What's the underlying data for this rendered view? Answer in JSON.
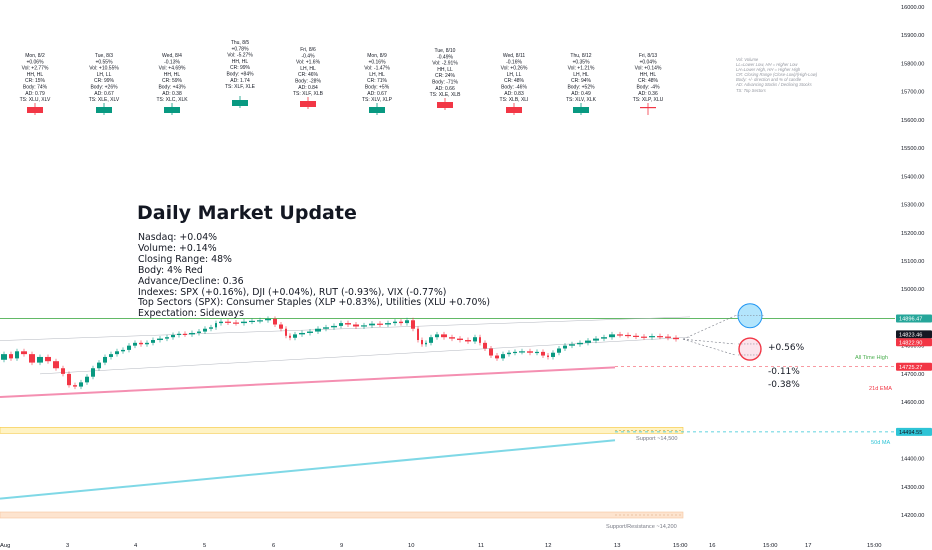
{
  "chart_data": {
    "type": "candlestick",
    "title": "Daily Market Update",
    "y_ticks": [
      14200,
      14300,
      14400,
      14500,
      14600,
      14700,
      14800,
      14900,
      15000,
      15100,
      15200,
      15300,
      15400,
      15500,
      15600,
      15700,
      15800,
      15900,
      16000
    ],
    "ylim": [
      14140,
      16020
    ],
    "x_tick_labels": [
      "Aug",
      "3",
      "4",
      "5",
      "6",
      "9",
      "10",
      "11",
      "12",
      "13",
      "15:00",
      "16",
      "15:00",
      "17",
      "15:00"
    ],
    "price_tags": [
      {
        "label": "14896.47",
        "bg": "#26a69a",
        "fg": "#ffffff"
      },
      {
        "label": "14823.46",
        "bg": "#131722",
        "fg": "#ffffff"
      },
      {
        "label": "14822.90",
        "bg": "#f23645",
        "fg": "#ffffff"
      },
      {
        "label": "14725.27",
        "bg": "#f23645",
        "fg": "#ffffff"
      },
      {
        "label": "14494.55",
        "bg": "#2ec4d6",
        "fg": "#131722"
      }
    ],
    "levels": [
      {
        "name": "All Time High",
        "value": 14896.47,
        "color": "#4caf50"
      },
      {
        "name": "21d EMA",
        "value": 14725.27,
        "color": "#f23645"
      },
      {
        "name": "50d MA",
        "value": 14494.55,
        "color": "#2ec4d6"
      },
      {
        "name": "Support ~14,500",
        "value": 14500,
        "color": "#f5c842"
      },
      {
        "name": "Support/Resistance ~14,200",
        "value": 14200,
        "color": "#f7c59f"
      }
    ],
    "projections": [
      {
        "label": "+0.56%",
        "value": 14906,
        "color": "#2196f3"
      },
      {
        "label": "-0.11%",
        "value": 14806,
        "color": "#f23645"
      },
      {
        "label": "-0.38%",
        "value": 14767,
        "color": "#f23645"
      }
    ],
    "daily_annotations": [
      {
        "day": "Mon, 8/2",
        "chg": "+0.06%",
        "vol": "Vol: +2.77%",
        "hl": "HH, HL",
        "cr": "CR: 15%",
        "body": "Body: 74%",
        "ad": "AD: 0.79",
        "ts": "TS: XLU, XLV",
        "candle": "red"
      },
      {
        "day": "Tue, 8/3",
        "chg": "+0.55%",
        "vol": "Vol: +10.55%",
        "hl": "LH, LL",
        "cr": "CR: 99%",
        "body": "Body: +26%",
        "ad": "AD: 0.67",
        "ts": "TS: XLE, XLV",
        "candle": "green"
      },
      {
        "day": "Wed, 8/4",
        "chg": "-0.13%",
        "vol": "Vol: +4.69%",
        "hl": "HH, HL",
        "cr": "CR: 59%",
        "body": "Body: +43%",
        "ad": "AD: 0.38",
        "ts": "TS: XLC, XLK",
        "candle": "green"
      },
      {
        "day": "Thu, 8/5",
        "chg": "+0.78%",
        "vol": "Vol: -5.27%",
        "hl": "HH, HL",
        "cr": "CR: 99%",
        "body": "Body: +84%",
        "ad": "AD: 1.74",
        "ts": "TS: XLF, XLE",
        "candle": "green"
      },
      {
        "day": "Fri, 8/6",
        "chg": "-0.4%",
        "vol": "Vol: +1.6%",
        "hl": "LH, HL",
        "cr": "CR: 46%",
        "body": "Body: -28%",
        "ad": "AD: 0.84",
        "ts": "TS: XLF, XLB",
        "candle": "red"
      },
      {
        "day": "Mon, 8/9",
        "chg": "+0.16%",
        "vol": "Vol: -1.47%",
        "hl": "LH, HL",
        "cr": "CR: 71%",
        "body": "Body: +5%",
        "ad": "AD: 0.67",
        "ts": "TS: XLV, XLP",
        "candle": "green"
      },
      {
        "day": "Tue, 8/10",
        "chg": "-0.49%",
        "vol": "Vol: -2.91%",
        "hl": "HH, LL",
        "cr": "CR: 24%",
        "body": "Body: -71%",
        "ad": "AD: 0.66",
        "ts": "TS: XLE, XLB",
        "candle": "red"
      },
      {
        "day": "Wed, 8/11",
        "chg": "-0.16%",
        "vol": "Vol: +0.26%",
        "hl": "LH, LL",
        "cr": "CR: 48%",
        "body": "Body: -46%",
        "ad": "AD: 0.83",
        "ts": "TS: XLB, XLI",
        "candle": "red"
      },
      {
        "day": "Thu, 8/12",
        "chg": "+0.35%",
        "vol": "Vol: +1.21%",
        "hl": "LH, HL",
        "cr": "CR: 94%",
        "body": "Body: +52%",
        "ad": "AD: 0.49",
        "ts": "TS: XLV, XLK",
        "candle": "green"
      },
      {
        "day": "Fri, 8/13",
        "chg": "+0.04%",
        "vol": "Vol: +0.14%",
        "hl": "HH, HL",
        "cr": "CR: 48%",
        "body": "Body: -4%",
        "ad": "AD: 0.36",
        "ts": "TS: XLP, XLU",
        "candle": "red"
      }
    ],
    "legend_lines": [
      "Vol: Volume",
      "LL=Lower Low, HH = Higher Low",
      "LH=Lower High, HH = Higher High",
      "CR: Closing Range (Close-Low)/(High-Low)",
      "Body: +/- direction and % of candle",
      "AD: Advancing Stocks / Declining Stocks",
      "TS: Top Sectors"
    ]
  },
  "headline": "Daily Market Update",
  "summary": {
    "nasdaq": "Nasdaq: +0.04%",
    "volume": "Volume: +0.14%",
    "closing_range": "Closing Range: 48%",
    "body": "Body: 4% Red",
    "ad": "Advance/Decline: 0.36",
    "indexes": "Indexes: SPX (+0.16%), DJI (+0.04%), RUT (-0.93%), VIX (-0.77%)",
    "sectors": "Top Sectors (SPX): Consumer Staples (XLP +0.83%), Utilities (XLU +0.70%)",
    "expectation": "Expectation: Sideways"
  },
  "colors": {
    "up": "#089981",
    "down": "#f23645",
    "ath": "#4caf50",
    "ema": "#f23645",
    "ma50": "#2ec4d6"
  }
}
